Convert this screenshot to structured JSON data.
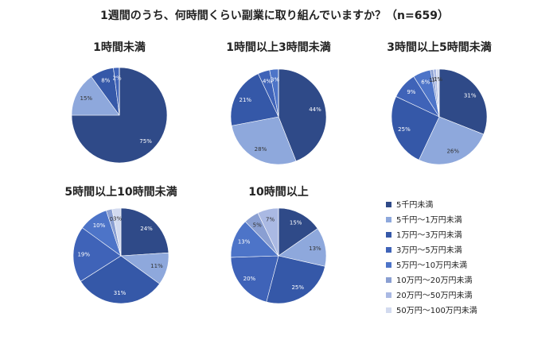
{
  "title": "1週間のうち、何時間くらい副業に取り組んでいますか？（n=659）",
  "legend": {
    "categories": [
      "5千円未満",
      "5千円〜1万円未満",
      "1万円〜3万円未満",
      "3万円〜5万円未満",
      "5万円〜10万円未満",
      "10万円〜20万円未満",
      "20万円〜50万円未満",
      "50万円〜100万円未満"
    ],
    "colors": [
      "#2f4a88",
      "#8ea8dc",
      "#3558a8",
      "#3f63b8",
      "#4d74c8",
      "#8a9fd2",
      "#aab9e3",
      "#d2daef"
    ]
  },
  "chart_data": [
    {
      "type": "pie",
      "title": "1時間未満",
      "values": [
        75,
        15,
        8,
        2,
        0,
        0,
        0,
        0
      ],
      "value_labels": [
        "75%",
        "15%",
        "8%",
        "2%",
        "",
        "",
        "",
        ""
      ]
    },
    {
      "type": "pie",
      "title": "1時間以上3時間未満",
      "values": [
        44,
        28,
        21,
        4,
        3,
        0,
        0,
        0
      ],
      "value_labels": [
        "44%",
        "28%",
        "21%",
        "4%",
        "3%",
        "",
        "",
        ""
      ]
    },
    {
      "type": "pie",
      "title": "3時間以上5時間未満",
      "values": [
        31,
        26,
        25,
        9,
        6,
        1,
        1,
        1
      ],
      "value_labels": [
        "31%",
        "26%",
        "25%",
        "9%",
        "6%",
        "1%",
        "1%",
        "1%"
      ]
    },
    {
      "type": "pie",
      "title": "5時間以上10時間未満",
      "values": [
        24,
        11,
        31,
        19,
        10,
        2,
        0,
        3
      ],
      "value_labels": [
        "24%",
        "11%",
        "31%",
        "19%",
        "10%",
        "",
        "0%",
        "3%"
      ]
    },
    {
      "type": "pie",
      "title": "10時間以上",
      "values": [
        15,
        13,
        25,
        20,
        13,
        5,
        7,
        0
      ],
      "value_labels": [
        "15%",
        "13%",
        "25%",
        "20%",
        "13%",
        "5%",
        "7%",
        ""
      ]
    }
  ]
}
